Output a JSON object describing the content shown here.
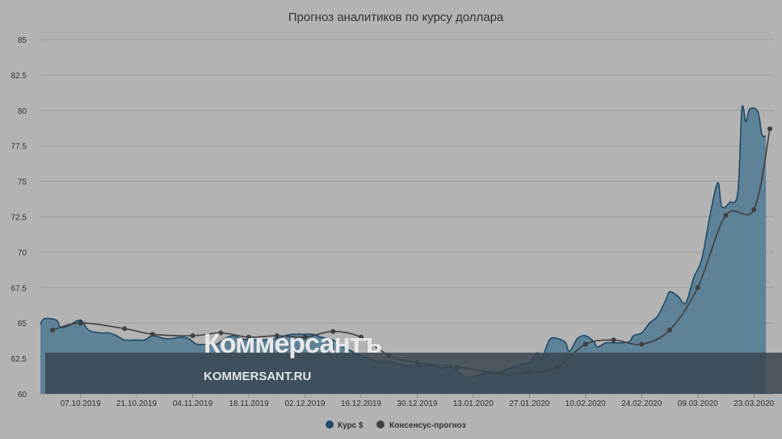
{
  "chart_data": {
    "type": "area",
    "title": "Прогноз аналитиков по курсу доллара",
    "xlabel": "",
    "ylabel": "",
    "ylim": [
      60,
      85
    ],
    "y_ticks": [
      "60",
      "62.5",
      "65",
      "67.5",
      "70",
      "72.5",
      "75",
      "77.5",
      "80",
      "82.5",
      "85"
    ],
    "x_ticks": [
      "07.10.2019",
      "21.10.2019",
      "04.11.2019",
      "18.11.2019",
      "02.12.2019",
      "16.12.2019",
      "30.12.2019",
      "13.01.2020",
      "27.01.2020",
      "10.02.2020",
      "24.02.2020",
      "09.03.2020",
      "23.03.2020"
    ],
    "x_range": [
      "2019-09-27",
      "2020-03-28"
    ],
    "grid": true,
    "legend_position": "bottom",
    "series": [
      {
        "name": "Курс $",
        "kind": "area",
        "color": "#5a7f96",
        "line_color": "#1f4a66",
        "points": [
          [
            "2019-09-27",
            64.9
          ],
          [
            "2019-09-28",
            65.3
          ],
          [
            "2019-10-01",
            65.2
          ],
          [
            "2019-10-02",
            64.7
          ],
          [
            "2019-10-04",
            64.8
          ],
          [
            "2019-10-07",
            65.2
          ],
          [
            "2019-10-09",
            64.5
          ],
          [
            "2019-10-12",
            64.3
          ],
          [
            "2019-10-14",
            64.3
          ],
          [
            "2019-10-16",
            64.1
          ],
          [
            "2019-10-18",
            63.8
          ],
          [
            "2019-10-21",
            63.8
          ],
          [
            "2019-10-23",
            63.8
          ],
          [
            "2019-10-25",
            64.1
          ],
          [
            "2019-10-28",
            63.9
          ],
          [
            "2019-10-30",
            63.9
          ],
          [
            "2019-11-01",
            64.0
          ],
          [
            "2019-11-03",
            63.9
          ],
          [
            "2019-11-05",
            63.5
          ],
          [
            "2019-11-08",
            63.5
          ],
          [
            "2019-11-10",
            63.5
          ],
          [
            "2019-11-12",
            63.9
          ],
          [
            "2019-11-14",
            64.1
          ],
          [
            "2019-11-16",
            63.9
          ],
          [
            "2019-11-18",
            63.8
          ],
          [
            "2019-11-20",
            63.8
          ],
          [
            "2019-11-22",
            63.8
          ],
          [
            "2019-11-25",
            63.9
          ],
          [
            "2019-11-27",
            64.1
          ],
          [
            "2019-11-29",
            64.2
          ],
          [
            "2019-12-02",
            64.2
          ],
          [
            "2019-12-04",
            64.2
          ],
          [
            "2019-12-06",
            64.0
          ],
          [
            "2019-12-09",
            63.8
          ],
          [
            "2019-12-11",
            63.4
          ],
          [
            "2019-12-13",
            63.1
          ],
          [
            "2019-12-16",
            62.7
          ],
          [
            "2019-12-18",
            62.5
          ],
          [
            "2019-12-20",
            62.3
          ],
          [
            "2019-12-23",
            62.3
          ],
          [
            "2019-12-25",
            62.1
          ],
          [
            "2019-12-28",
            62.0
          ],
          [
            "2019-12-31",
            62.0
          ],
          [
            "2020-01-03",
            62.0
          ],
          [
            "2020-01-05",
            61.8
          ],
          [
            "2020-01-07",
            61.9
          ],
          [
            "2020-01-09",
            61.6
          ],
          [
            "2020-01-11",
            61.2
          ],
          [
            "2020-01-13",
            61.2
          ],
          [
            "2020-01-15",
            61.4
          ],
          [
            "2020-01-17",
            61.6
          ],
          [
            "2020-01-19",
            61.5
          ],
          [
            "2020-01-21",
            61.7
          ],
          [
            "2020-01-23",
            61.9
          ],
          [
            "2020-01-25",
            62.1
          ],
          [
            "2020-01-27",
            62.2
          ],
          [
            "2020-01-29",
            62.9
          ],
          [
            "2020-01-30",
            62.4
          ],
          [
            "2020-02-01",
            63.8
          ],
          [
            "2020-02-03",
            63.9
          ],
          [
            "2020-02-05",
            63.6
          ],
          [
            "2020-02-06",
            63.0
          ],
          [
            "2020-02-08",
            63.9
          ],
          [
            "2020-02-10",
            64.1
          ],
          [
            "2020-02-12",
            63.7
          ],
          [
            "2020-02-13",
            63.3
          ],
          [
            "2020-02-15",
            63.6
          ],
          [
            "2020-02-17",
            63.6
          ],
          [
            "2020-02-19",
            63.6
          ],
          [
            "2020-02-21",
            63.7
          ],
          [
            "2020-02-22",
            64.1
          ],
          [
            "2020-02-24",
            64.3
          ],
          [
            "2020-02-26",
            65.0
          ],
          [
            "2020-02-28",
            65.5
          ],
          [
            "2020-03-01",
            66.6
          ],
          [
            "2020-03-02",
            67.2
          ],
          [
            "2020-03-04",
            66.9
          ],
          [
            "2020-03-06",
            66.4
          ],
          [
            "2020-03-08",
            68.2
          ],
          [
            "2020-03-10",
            69.5
          ],
          [
            "2020-03-12",
            72.5
          ],
          [
            "2020-03-14",
            74.9
          ],
          [
            "2020-03-15",
            73.2
          ],
          [
            "2020-03-17",
            73.5
          ],
          [
            "2020-03-19",
            74.2
          ],
          [
            "2020-03-20",
            80.1
          ],
          [
            "2020-03-21",
            79.2
          ],
          [
            "2020-03-22",
            80.1
          ],
          [
            "2020-03-24",
            79.9
          ],
          [
            "2020-03-25",
            78.3
          ],
          [
            "2020-03-26",
            78.2
          ]
        ]
      },
      {
        "name": "Консенсус-прогноз",
        "kind": "line",
        "color": "#404040",
        "points": [
          [
            "2019-09-30",
            64.5
          ],
          [
            "2019-10-07",
            65.0
          ],
          [
            "2019-10-18",
            64.6
          ],
          [
            "2019-10-25",
            64.2
          ],
          [
            "2019-11-04",
            64.1
          ],
          [
            "2019-11-11",
            64.3
          ],
          [
            "2019-11-18",
            64.0
          ],
          [
            "2019-11-25",
            64.1
          ],
          [
            "2019-12-02",
            64.0
          ],
          [
            "2019-12-09",
            64.4
          ],
          [
            "2019-12-16",
            64.0
          ],
          [
            "2019-12-23",
            62.7
          ],
          [
            "2019-12-30",
            62.2
          ],
          [
            "2020-01-09",
            61.9
          ],
          [
            "2020-01-20",
            61.4
          ],
          [
            "2020-01-27",
            61.5
          ],
          [
            "2020-02-03",
            61.9
          ],
          [
            "2020-02-10",
            63.5
          ],
          [
            "2020-02-17",
            63.8
          ],
          [
            "2020-02-24",
            63.5
          ],
          [
            "2020-03-02",
            64.5
          ],
          [
            "2020-03-09",
            67.5
          ],
          [
            "2020-03-16",
            72.6
          ],
          [
            "2020-03-23",
            73.0
          ],
          [
            "2020-03-27",
            78.7
          ]
        ]
      }
    ]
  },
  "watermark": {
    "logo": "Коммерсантъ",
    "site": "KOMMERSANT.RU"
  }
}
